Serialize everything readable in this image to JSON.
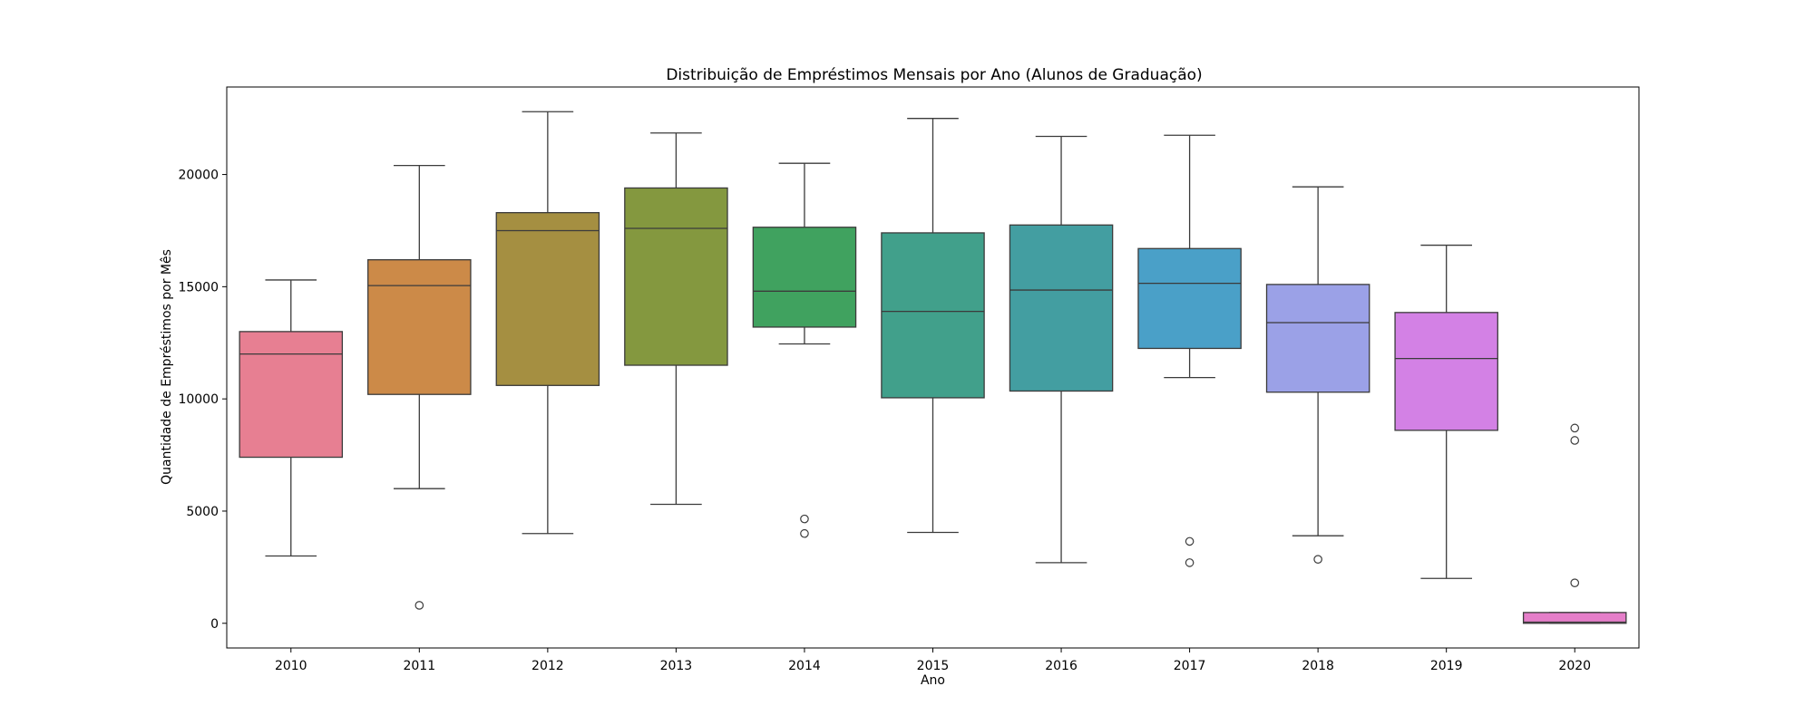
{
  "chart_data": {
    "type": "box",
    "title": "Distribuição de Empréstimos Mensais por Ano (Alunos de Graduação)",
    "xlabel": "Ano",
    "ylabel": "Quantidade de Empréstimos por Mês",
    "ylim": [
      -1100,
      23900
    ],
    "yticks": [
      0,
      5000,
      10000,
      15000,
      20000
    ],
    "categories": [
      "2010",
      "2011",
      "2012",
      "2013",
      "2014",
      "2015",
      "2016",
      "2017",
      "2018",
      "2019",
      "2020"
    ],
    "boxes": [
      {
        "category": "2010",
        "color": "#e77f92",
        "whisker_low": 3000,
        "q1": 7400,
        "median": 12000,
        "q3": 13000,
        "whisker_high": 15300,
        "outliers": []
      },
      {
        "category": "2011",
        "color": "#cc8a48",
        "whisker_low": 6000,
        "q1": 10200,
        "median": 15050,
        "q3": 16200,
        "whisker_high": 20400,
        "outliers": [
          800
        ]
      },
      {
        "category": "2012",
        "color": "#a58f41",
        "whisker_low": 4000,
        "q1": 10600,
        "median": 17500,
        "q3": 18300,
        "whisker_high": 22800,
        "outliers": []
      },
      {
        "category": "2013",
        "color": "#84983f",
        "whisker_low": 5300,
        "q1": 11500,
        "median": 17600,
        "q3": 19400,
        "whisker_high": 21850,
        "outliers": []
      },
      {
        "category": "2014",
        "color": "#40a25f",
        "whisker_low": 12450,
        "q1": 13200,
        "median": 14800,
        "q3": 17650,
        "whisker_high": 20500,
        "outliers": [
          4650,
          4000
        ]
      },
      {
        "category": "2015",
        "color": "#41a08b",
        "whisker_low": 4050,
        "q1": 10050,
        "median": 13900,
        "q3": 17400,
        "whisker_high": 22500,
        "outliers": []
      },
      {
        "category": "2016",
        "color": "#439ea1",
        "whisker_low": 2700,
        "q1": 10350,
        "median": 14850,
        "q3": 17750,
        "whisker_high": 21700,
        "outliers": []
      },
      {
        "category": "2017",
        "color": "#4aa0c8",
        "whisker_low": 10950,
        "q1": 12250,
        "median": 15150,
        "q3": 16700,
        "whisker_high": 21750,
        "outliers": [
          3650,
          2700
        ]
      },
      {
        "category": "2018",
        "color": "#9ba1e7",
        "whisker_low": 3900,
        "q1": 10300,
        "median": 13400,
        "q3": 15100,
        "whisker_high": 19450,
        "outliers": [
          2850
        ]
      },
      {
        "category": "2019",
        "color": "#d381e5",
        "whisker_low": 2000,
        "q1": 8600,
        "median": 11800,
        "q3": 13850,
        "whisker_high": 16850,
        "outliers": []
      },
      {
        "category": "2020",
        "color": "#e57ec9",
        "whisker_low": 0,
        "q1": 0,
        "median": 50,
        "q3": 480,
        "whisker_high": 480,
        "outliers": [
          8700,
          8150,
          1800
        ]
      }
    ],
    "grid": false,
    "legend": "none"
  }
}
